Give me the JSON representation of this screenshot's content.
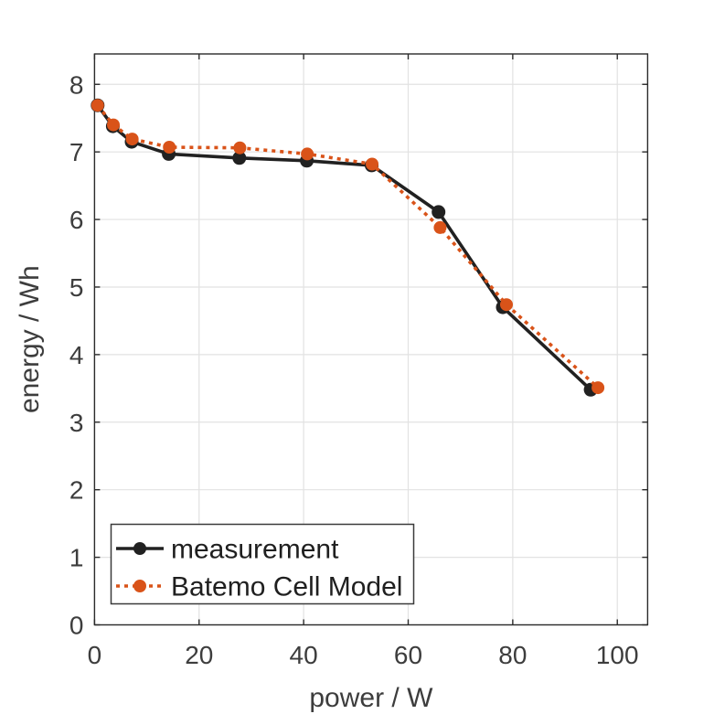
{
  "figure": {
    "background": "#ffffff"
  },
  "chart_data": {
    "type": "line",
    "title": "",
    "xlabel": "power / W",
    "ylabel": "energy / Wh",
    "xlim": [
      0,
      105.8
    ],
    "ylim": [
      0,
      8.45
    ],
    "x_ticks": [
      0,
      20,
      40,
      60,
      80,
      100
    ],
    "y_ticks": [
      0,
      1,
      2,
      3,
      4,
      5,
      6,
      7,
      8
    ],
    "grid": true,
    "box": true,
    "legend_position": "bottom-left",
    "colors": {
      "grid": "#e2e2e2",
      "axis": "#2b2b2b",
      "tick_label": "#3d3d3d"
    },
    "series": [
      {
        "name": "measurement",
        "color": "#212121",
        "line_style": "solid",
        "marker": "circle",
        "points": [
          [
            0.6,
            7.69
          ],
          [
            3.5,
            7.38
          ],
          [
            7.1,
            7.15
          ],
          [
            14.2,
            6.97
          ],
          [
            27.7,
            6.91
          ],
          [
            40.6,
            6.87
          ],
          [
            53.0,
            6.8
          ],
          [
            65.8,
            6.11
          ],
          [
            78.1,
            4.7
          ],
          [
            94.9,
            3.48
          ]
        ]
      },
      {
        "name": "Batemo Cell Model",
        "color": "#d95319",
        "line_style": "dotted",
        "marker": "circle",
        "points": [
          [
            0.6,
            7.69
          ],
          [
            3.6,
            7.4
          ],
          [
            7.2,
            7.19
          ],
          [
            14.3,
            7.07
          ],
          [
            27.8,
            7.06
          ],
          [
            40.7,
            6.97
          ],
          [
            53.1,
            6.82
          ],
          [
            66.1,
            5.88
          ],
          [
            78.8,
            4.74
          ],
          [
            96.3,
            3.51
          ]
        ]
      }
    ]
  }
}
